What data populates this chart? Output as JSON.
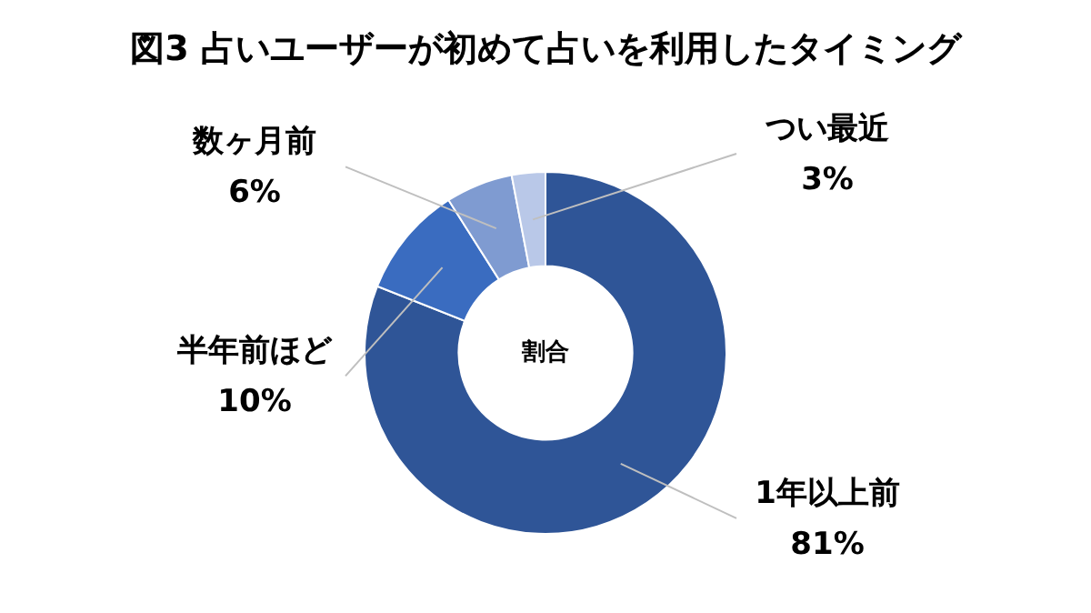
{
  "chart_data": {
    "type": "donut",
    "title": "図3 占いユーザーが初めて占いを利用したタイミング",
    "categories": [
      "1年以上前",
      "半年前ほど",
      "数ヶ月前",
      "つい最近"
    ],
    "values": [
      81,
      10,
      6,
      3
    ],
    "value_labels": [
      "81%",
      "10%",
      "6%",
      "3%"
    ],
    "colors": [
      "#2f5597",
      "#3a6cc0",
      "#7f9bd1",
      "#b9c8e8"
    ],
    "annotations": [
      "割合"
    ],
    "legend": false
  }
}
